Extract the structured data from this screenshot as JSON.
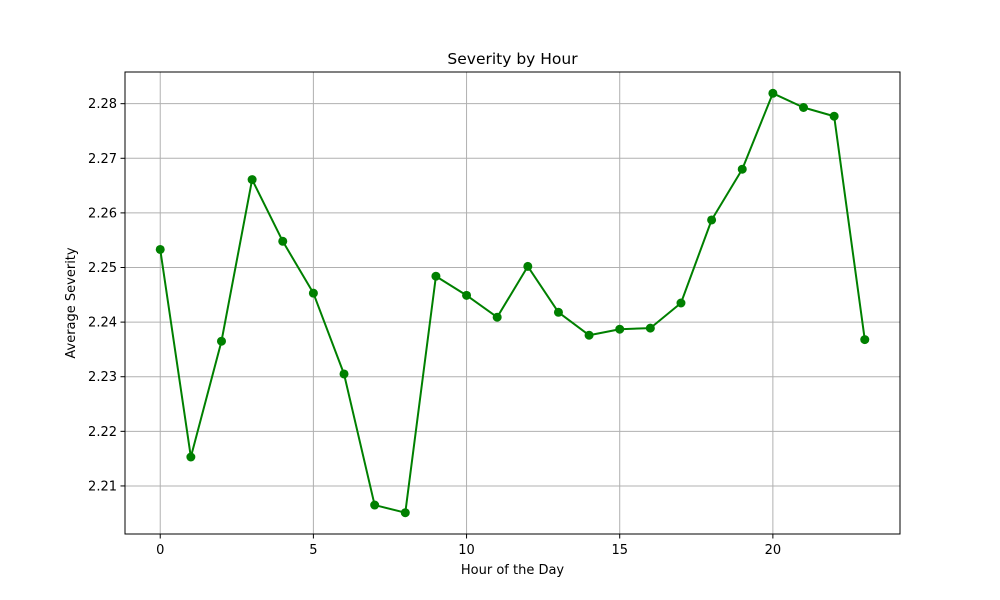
{
  "chart_data": {
    "type": "line",
    "title": "Severity by Hour",
    "xlabel": "Hour of the Day",
    "ylabel": "Average Severity",
    "x": [
      0,
      1,
      2,
      3,
      4,
      5,
      6,
      7,
      8,
      9,
      10,
      11,
      12,
      13,
      14,
      15,
      16,
      17,
      18,
      19,
      20,
      21,
      22,
      23
    ],
    "series": [
      {
        "values": [
          2.2533,
          2.2153,
          2.2365,
          2.2661,
          2.2548,
          2.2453,
          2.2305,
          2.2065,
          2.2051,
          2.2484,
          2.2449,
          2.2409,
          2.2502,
          2.2418,
          2.2376,
          2.2387,
          2.2389,
          2.2435,
          2.2587,
          2.268,
          2.2819,
          2.2793,
          2.2777,
          2.2368
        ],
        "color": "#008000",
        "marker": "circle"
      }
    ],
    "xlim": [
      -1.15,
      24.15
    ],
    "ylim": [
      2.2012,
      2.2858
    ],
    "xticks": [
      0,
      5,
      10,
      15,
      20
    ],
    "yticks": [
      2.21,
      2.22,
      2.23,
      2.24,
      2.25,
      2.26,
      2.27,
      2.28
    ],
    "ytick_labels": [
      "2.21",
      "2.22",
      "2.23",
      "2.24",
      "2.25",
      "2.26",
      "2.27",
      "2.28"
    ],
    "grid": true,
    "colors": {
      "grid": "#b0b0b0",
      "axes": "#000000",
      "background": "#ffffff"
    }
  }
}
